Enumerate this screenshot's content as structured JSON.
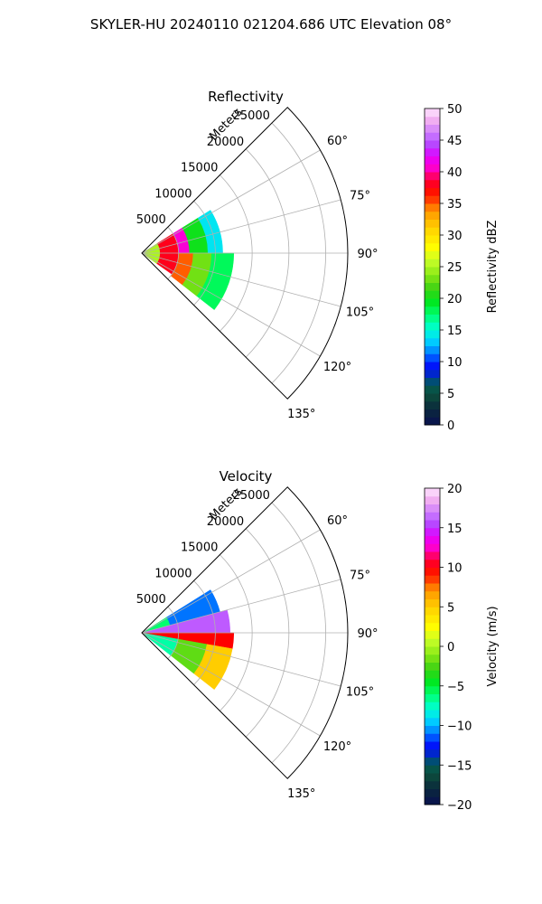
{
  "figure": {
    "suptitle": "SKYLER-HU  20240110  021204.686 UTC Elevation 08°"
  },
  "chart_data": [
    {
      "type": "heatmap",
      "projection": "polar-sector",
      "title": "Reflectivity",
      "radial_label": "Meters",
      "radial_ticks": [
        5000,
        10000,
        15000,
        20000,
        25000
      ],
      "angle_ticks_deg": [
        60,
        75,
        90,
        105,
        120,
        135
      ],
      "angle_range_deg": [
        45,
        135
      ],
      "range_max_m": 28000,
      "data_extent_m": 12500,
      "grid": true,
      "colorbar": {
        "label": "Reflectivity dBZ",
        "range": [
          0,
          50
        ],
        "ticks": [
          0,
          5,
          10,
          15,
          20,
          25,
          30,
          35,
          40,
          45,
          50
        ],
        "position": "right"
      },
      "bands": [
        {
          "r_from": 0,
          "r_to": 2500,
          "a_from": 58,
          "a_to": 125,
          "value": 25
        },
        {
          "r_from": 2500,
          "r_to": 5000,
          "a_from": 58,
          "a_to": 125,
          "value": 38
        },
        {
          "r_from": 5000,
          "r_to": 6500,
          "a_from": 58,
          "a_to": 90,
          "value": 41
        },
        {
          "r_from": 5000,
          "r_to": 7000,
          "a_from": 90,
          "a_to": 128,
          "value": 35
        },
        {
          "r_from": 6500,
          "r_to": 9000,
          "a_from": 58,
          "a_to": 90,
          "value": 20
        },
        {
          "r_from": 7000,
          "r_to": 9500,
          "a_from": 90,
          "a_to": 128,
          "value": 23
        },
        {
          "r_from": 9000,
          "r_to": 11000,
          "a_from": 58,
          "a_to": 90,
          "value": 14
        },
        {
          "r_from": 9500,
          "r_to": 12500,
          "a_from": 90,
          "a_to": 128,
          "value": 18
        }
      ]
    },
    {
      "type": "heatmap",
      "projection": "polar-sector",
      "title": "Velocity",
      "radial_label": "Meters",
      "radial_ticks": [
        5000,
        10000,
        15000,
        20000,
        25000
      ],
      "angle_ticks_deg": [
        60,
        75,
        90,
        105,
        120,
        135
      ],
      "angle_range_deg": [
        45,
        135
      ],
      "range_max_m": 28000,
      "data_extent_m": 12500,
      "grid": true,
      "colorbar": {
        "label": "Velocity (m/s)",
        "range": [
          -20,
          20
        ],
        "ticks": [
          -20,
          -15,
          -10,
          -5,
          0,
          5,
          10,
          15,
          20
        ],
        "position": "right"
      },
      "bands": [
        {
          "r_from": 0,
          "r_to": 4000,
          "a_from": 58,
          "a_to": 75,
          "value": -6
        },
        {
          "r_from": 4000,
          "r_to": 11000,
          "a_from": 58,
          "a_to": 75,
          "value": -11
        },
        {
          "r_from": 0,
          "r_to": 12000,
          "a_from": 75,
          "a_to": 90,
          "value": 16
        },
        {
          "r_from": 0,
          "r_to": 12500,
          "a_from": 90,
          "a_to": 100,
          "value": 10
        },
        {
          "r_from": 0,
          "r_to": 5000,
          "a_from": 100,
          "a_to": 128,
          "value": -7
        },
        {
          "r_from": 5000,
          "r_to": 9000,
          "a_from": 100,
          "a_to": 128,
          "value": -2
        },
        {
          "r_from": 9000,
          "r_to": 12500,
          "a_from": 100,
          "a_to": 128,
          "value": 5
        }
      ]
    }
  ]
}
